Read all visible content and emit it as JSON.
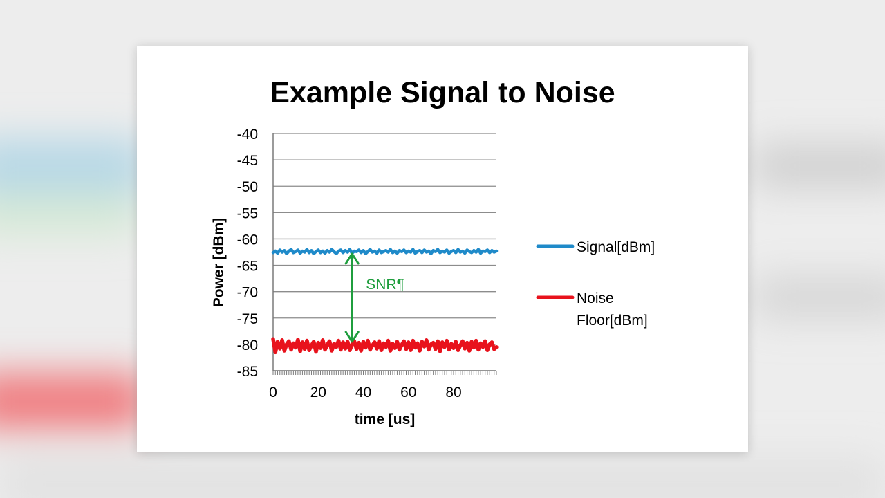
{
  "colors": {
    "signal": "#1f8ac9",
    "noise": "#e8121c",
    "annotation": "#1f9e3e",
    "grid": "#8c8c8c"
  },
  "chart_data": {
    "type": "line",
    "title": "Example Signal to Noise",
    "xlabel": "time [us]",
    "ylabel": "Power [dBm]",
    "xlim": [
      0,
      99
    ],
    "ylim": [
      -85,
      -40
    ],
    "xticks": [
      "0",
      "20",
      "40",
      "60",
      "80"
    ],
    "yticks": [
      "-40",
      "-45",
      "-50",
      "-55",
      "-60",
      "-65",
      "-70",
      "-75",
      "-80",
      "-85"
    ],
    "grid": true,
    "legend_position": "right",
    "series": [
      {
        "name": "Signal[dBm]",
        "x": [
          0,
          1,
          2,
          3,
          4,
          5,
          6,
          7,
          8,
          9,
          10,
          11,
          12,
          13,
          14,
          15,
          16,
          17,
          18,
          19,
          20,
          21,
          22,
          23,
          24,
          25,
          26,
          27,
          28,
          29,
          30,
          31,
          32,
          33,
          34,
          35,
          36,
          37,
          38,
          39,
          40,
          41,
          42,
          43,
          44,
          45,
          46,
          47,
          48,
          49,
          50,
          51,
          52,
          53,
          54,
          55,
          56,
          57,
          58,
          59,
          60,
          61,
          62,
          63,
          64,
          65,
          66,
          67,
          68,
          69,
          70,
          71,
          72,
          73,
          74,
          75,
          76,
          77,
          78,
          79,
          80,
          81,
          82,
          83,
          84,
          85,
          86,
          87,
          88,
          89,
          90,
          91,
          92,
          93,
          94,
          95,
          96,
          97,
          98,
          99
        ],
        "values": [
          -62.6,
          -62.3,
          -62.7,
          -62.1,
          -62.5,
          -62.2,
          -62.8,
          -62.3,
          -62.0,
          -62.6,
          -62.4,
          -62.1,
          -62.7,
          -62.3,
          -62.5,
          -62.0,
          -62.6,
          -62.2,
          -62.8,
          -62.4,
          -62.1,
          -62.6,
          -62.3,
          -62.7,
          -62.2,
          -62.5,
          -62.0,
          -62.4,
          -62.8,
          -62.3,
          -62.1,
          -62.6,
          -62.2,
          -62.5,
          -62.0,
          -62.7,
          -62.3,
          -62.4,
          -62.1,
          -62.6,
          -62.2,
          -62.8,
          -62.4,
          -62.0,
          -62.5,
          -62.3,
          -62.7,
          -62.1,
          -62.6,
          -62.4,
          -62.2,
          -62.5,
          -62.0,
          -62.6,
          -62.3,
          -62.7,
          -62.2,
          -62.4,
          -62.1,
          -62.6,
          -62.3,
          -62.5,
          -62.0,
          -62.7,
          -62.4,
          -62.2,
          -62.6,
          -62.1,
          -62.5,
          -62.3,
          -62.8,
          -62.2,
          -62.4,
          -62.0,
          -62.6,
          -62.3,
          -62.5,
          -62.1,
          -62.7,
          -62.4,
          -62.2,
          -62.6,
          -62.0,
          -62.5,
          -62.3,
          -62.7,
          -62.1,
          -62.4,
          -62.6,
          -62.2,
          -62.5,
          -62.0,
          -62.7,
          -62.3,
          -62.4,
          -62.1,
          -62.6,
          -62.2,
          -62.5,
          -62.3
        ]
      },
      {
        "name": "Noise Floor[dBm]",
        "x": [
          0,
          1,
          2,
          3,
          4,
          5,
          6,
          7,
          8,
          9,
          10,
          11,
          12,
          13,
          14,
          15,
          16,
          17,
          18,
          19,
          20,
          21,
          22,
          23,
          24,
          25,
          26,
          27,
          28,
          29,
          30,
          31,
          32,
          33,
          34,
          35,
          36,
          37,
          38,
          39,
          40,
          41,
          42,
          43,
          44,
          45,
          46,
          47,
          48,
          49,
          50,
          51,
          52,
          53,
          54,
          55,
          56,
          57,
          58,
          59,
          60,
          61,
          62,
          63,
          64,
          65,
          66,
          67,
          68,
          69,
          70,
          71,
          72,
          73,
          74,
          75,
          76,
          77,
          78,
          79,
          80,
          81,
          82,
          83,
          84,
          85,
          86,
          87,
          88,
          89,
          90,
          91,
          92,
          93,
          94,
          95,
          96,
          97,
          98,
          99
        ],
        "values": [
          -79.0,
          -81.5,
          -79.5,
          -80.8,
          -79.2,
          -81.2,
          -80.0,
          -79.4,
          -81.0,
          -79.8,
          -80.6,
          -79.1,
          -81.3,
          -79.6,
          -80.9,
          -79.3,
          -81.1,
          -80.2,
          -79.5,
          -81.4,
          -79.7,
          -80.7,
          -79.2,
          -81.0,
          -80.1,
          -79.4,
          -81.2,
          -79.9,
          -80.5,
          -79.3,
          -81.0,
          -79.6,
          -80.8,
          -79.5,
          -81.1,
          -80.0,
          -79.4,
          -80.9,
          -79.7,
          -81.2,
          -79.5,
          -80.6,
          -79.3,
          -81.0,
          -80.2,
          -79.6,
          -80.8,
          -79.4,
          -81.1,
          -79.8,
          -80.5,
          -79.3,
          -81.2,
          -79.9,
          -80.7,
          -79.5,
          -81.0,
          -80.1,
          -79.4,
          -80.9,
          -79.6,
          -81.1,
          -79.3,
          -80.6,
          -79.8,
          -81.2,
          -79.5,
          -80.4,
          -79.2,
          -81.0,
          -80.0,
          -79.7,
          -80.9,
          -79.4,
          -81.3,
          -79.6,
          -80.5,
          -79.3,
          -81.0,
          -79.9,
          -80.7,
          -79.5,
          -81.1,
          -80.2,
          -79.4,
          -80.8,
          -79.7,
          -81.2,
          -79.5,
          -80.6,
          -79.3,
          -81.0,
          -79.8,
          -80.5,
          -79.4,
          -81.1,
          -80.0,
          -79.6,
          -80.9,
          -80.5
        ]
      }
    ],
    "annotations": [
      {
        "text": "SNR¶",
        "x": 35,
        "y_from": -62.3,
        "y_to": -80.0
      }
    ]
  }
}
